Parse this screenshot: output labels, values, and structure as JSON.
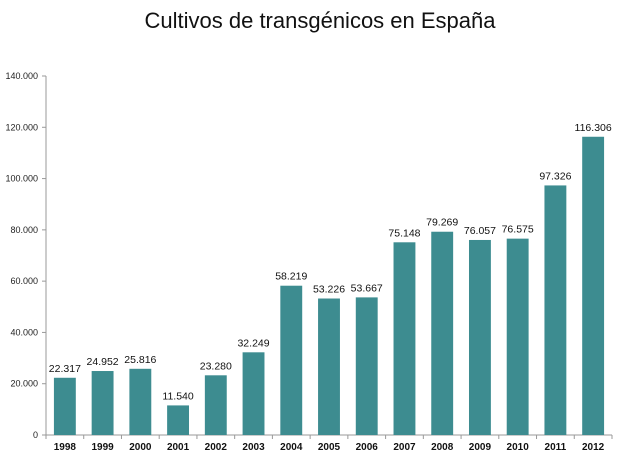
{
  "chart_data": {
    "type": "bar",
    "title": "Cultivos de transgénicos en España",
    "xlabel": "",
    "ylabel": "",
    "categories": [
      "1998",
      "1999",
      "2000",
      "2001",
      "2002",
      "2003",
      "2004",
      "2005",
      "2006",
      "2007",
      "2008",
      "2009",
      "2010",
      "2011",
      "2012"
    ],
    "values": [
      22317,
      24952,
      25816,
      11540,
      23280,
      32249,
      58219,
      53226,
      53667,
      75148,
      79269,
      76057,
      76575,
      97326,
      116306
    ],
    "value_labels": [
      "22.317",
      "24.952",
      "25.816",
      "11.540",
      "23.280",
      "32.249",
      "58.219",
      "53.226",
      "53.667",
      "75.148",
      "79.269",
      "76.057",
      "76.575",
      "97.326",
      "116.306"
    ],
    "ylim": [
      0,
      140000
    ],
    "yticks": [
      0,
      20000,
      40000,
      60000,
      80000,
      100000,
      120000,
      140000
    ],
    "ytick_labels": [
      "0",
      "20.000",
      "40.000",
      "60.000",
      "80.000",
      "100.000",
      "120.000",
      "140.000"
    ],
    "grid": false,
    "legend": "none",
    "colors": {
      "bar": "#3d8c90",
      "axis": "#999999",
      "text": "#111111"
    }
  }
}
